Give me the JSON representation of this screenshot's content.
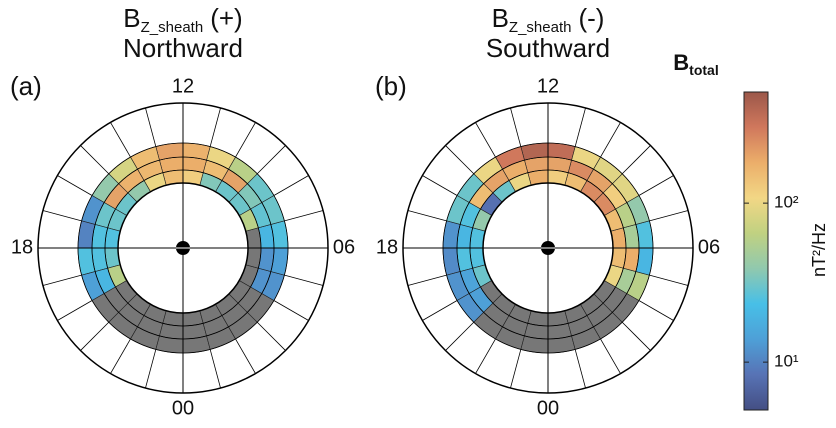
{
  "chart_data": [
    {
      "type": "polar_heatmap",
      "panel_label": "(a)",
      "title": {
        "main": "B",
        "sub": "Z_sheath",
        "suffix": "(+)"
      },
      "subtitle": "Northward",
      "theta_ticks": [
        12,
        {
          "value": 6,
          "label": "06"
        },
        {
          "value": 0,
          "label": "00"
        },
        18
      ],
      "null_color": "#5f5f5f",
      "values": [
        [
          null,
          null,
          null,
          null,
          null,
          null,
          null,
          60,
          30,
          30,
          35,
          120,
          150,
          100,
          40,
          30,
          30,
          25,
          30,
          60,
          null,
          null,
          null,
          null
        ],
        [
          null,
          null,
          null,
          null,
          12,
          12,
          20,
          28,
          35,
          200,
          150,
          180,
          180,
          160,
          170,
          200,
          30,
          25,
          25,
          20,
          null,
          null,
          null,
          null
        ],
        [
          null,
          null,
          null,
          null,
          12,
          14,
          25,
          30,
          30,
          60,
          100,
          170,
          200,
          150,
          80,
          40,
          12,
          10,
          25,
          14,
          null,
          null,
          null,
          null
        ]
      ]
    },
    {
      "type": "polar_heatmap",
      "panel_label": "(b)",
      "title": {
        "main": "B",
        "sub": "Z_sheath",
        "suffix": "(-)"
      },
      "subtitle": "Southward",
      "theta_ticks": [
        12,
        {
          "value": 6,
          "label": "06"
        },
        {
          "value": 0,
          "label": "00"
        },
        18
      ],
      "null_color": "#5f5f5f",
      "values": [
        [
          null,
          null,
          null,
          null,
          100,
          150,
          180,
          150,
          250,
          250,
          150,
          120,
          180,
          100,
          30,
          8,
          40,
          25,
          25,
          30,
          null,
          null,
          null,
          null
        ],
        [
          null,
          null,
          null,
          null,
          50,
          180,
          50,
          60,
          120,
          200,
          250,
          200,
          200,
          180,
          200,
          150,
          25,
          20,
          25,
          15,
          14,
          null,
          null,
          null
        ],
        [
          null,
          null,
          null,
          null,
          60,
          20,
          25,
          40,
          90,
          90,
          100,
          350,
          400,
          300,
          100,
          30,
          30,
          12,
          11,
          12,
          12,
          null,
          null,
          null
        ]
      ]
    }
  ],
  "colorbar": {
    "title": {
      "main": "B",
      "sub": "total"
    },
    "label": "nT²/Hz",
    "log": true,
    "lim": [
      5,
      500
    ],
    "ticks": [
      {
        "value": 10,
        "label": "10¹"
      },
      {
        "value": 100,
        "label": "10²"
      }
    ],
    "colors": [
      "#23306e",
      "#3a5aa8",
      "#2f8fd0",
      "#27b4e3",
      "#7dbfa0",
      "#b5c96b",
      "#f0d070",
      "#e8a050",
      "#c86040",
      "#8a3a2a"
    ]
  }
}
